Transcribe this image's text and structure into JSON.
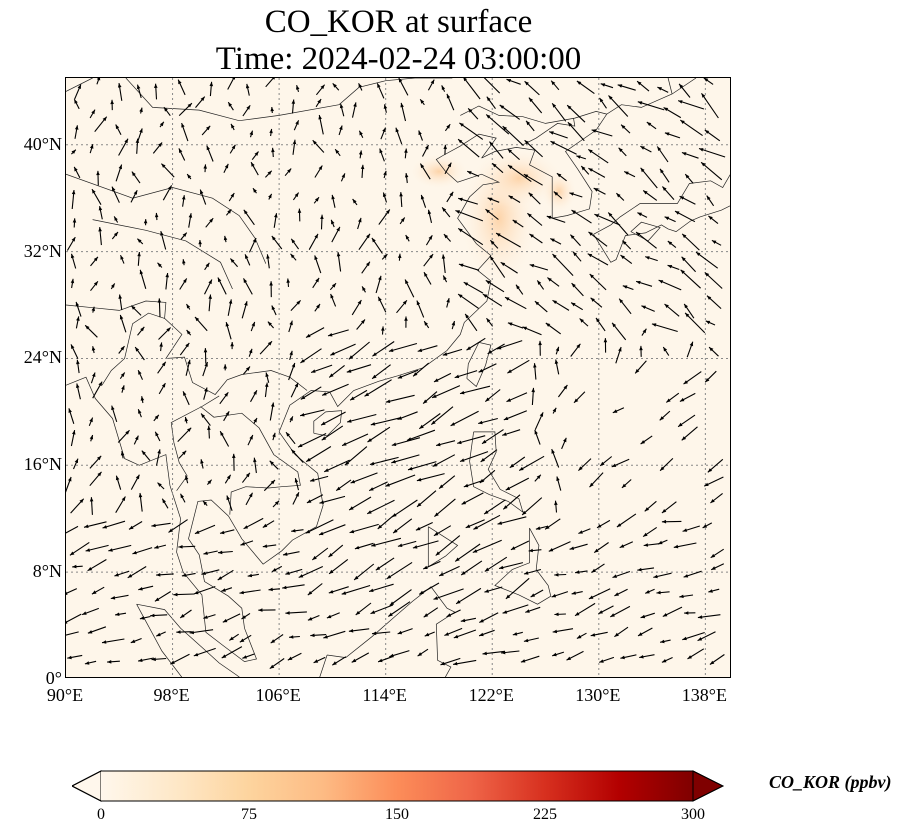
{
  "title": {
    "line1": "CO_KOR at surface",
    "line2": "Time: 2024-02-24 03:00:00"
  },
  "map": {
    "lat_labels": [
      "40°N",
      "32°N",
      "24°N",
      "16°N",
      "8°N",
      "0°"
    ],
    "lon_labels": [
      "90°E",
      "98°E",
      "106°E",
      "114°E",
      "122°E",
      "130°E",
      "138°E"
    ],
    "lat_values": [
      40,
      32,
      24,
      16,
      8,
      0
    ],
    "lon_values": [
      90,
      98,
      106,
      114,
      122,
      130,
      138
    ],
    "extent": {
      "lon_min": 90,
      "lon_max": 140,
      "lat_min": 0,
      "lat_max": 45
    },
    "gridlines": true,
    "background_color": "#fef6ea",
    "overlay": "wind vectors"
  },
  "colorbar": {
    "label": "CO_KOR (ppbv)",
    "ticks": [
      "0",
      "75",
      "150",
      "225",
      "300"
    ],
    "tick_values": [
      0,
      75,
      150,
      225,
      300
    ],
    "range": [
      0,
      300
    ],
    "extend": "both",
    "colormap": "OrRd",
    "colors": [
      "#fff7ec",
      "#fee8c8",
      "#fdd49e",
      "#fdbb84",
      "#fc8d59",
      "#ef6548",
      "#d7301f",
      "#b30000",
      "#7f0000"
    ]
  }
}
